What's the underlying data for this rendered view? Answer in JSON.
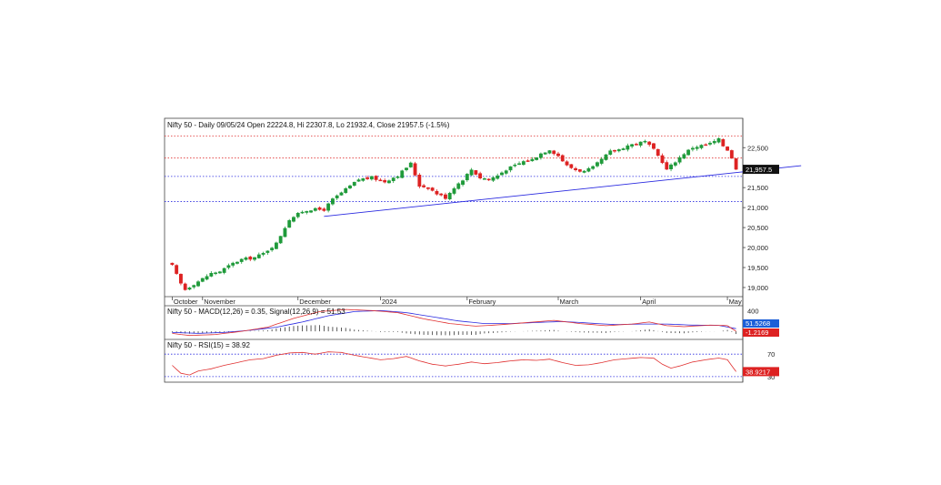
{
  "chart_data": {
    "type": "candlestick",
    "price": {
      "header": "Nifty 50 - Daily 09/05/24 Open 22224.8, Hi 22307.8, Lo 21932.4, Close 21957.5 (-1.5%)",
      "last_close_label": "21,957.5",
      "y_ticks": [
        {
          "value": 22500,
          "label": "22,500"
        },
        {
          "value": 22000,
          "label": "22,000"
        },
        {
          "value": 21500,
          "label": "21,500"
        },
        {
          "value": 21000,
          "label": "21,000"
        },
        {
          "value": 20500,
          "label": "20,500"
        },
        {
          "value": 20000,
          "label": "20,000"
        },
        {
          "value": 19500,
          "label": "19,500"
        },
        {
          "value": 19000,
          "label": "19,000"
        }
      ],
      "ylim": [
        18840,
        22870
      ],
      "x_labels": [
        {
          "bar": 0,
          "label": "October"
        },
        {
          "bar": 7,
          "label": "November"
        },
        {
          "bar": 29,
          "label": "December"
        },
        {
          "bar": 48,
          "label": "2024"
        },
        {
          "bar": 68,
          "label": "February"
        },
        {
          "bar": 89,
          "label": "March"
        },
        {
          "bar": 108,
          "label": "April"
        },
        {
          "bar": 128,
          "label": "May"
        }
      ],
      "hlines": [
        {
          "value": 22790,
          "color": "#e03030"
        },
        {
          "value": 22240,
          "color": "#e03030"
        },
        {
          "value": 21780,
          "color": "#2a2ae0"
        },
        {
          "value": 21150,
          "color": "#2a2ae0"
        }
      ],
      "trendline": {
        "from": [
          35,
          20780
        ],
        "to": [
          145,
          22050
        ],
        "color": "#2a2ae0"
      },
      "up_color": "#1f9a3a",
      "down_color": "#dd2222",
      "keypoints": [
        [
          0,
          19550
        ],
        [
          2,
          19100
        ],
        [
          3,
          18950
        ],
        [
          6,
          19150
        ],
        [
          9,
          19350
        ],
        [
          11,
          19400
        ],
        [
          14,
          19600
        ],
        [
          16,
          19700
        ],
        [
          19,
          19750
        ],
        [
          21,
          19850
        ],
        [
          24,
          20100
        ],
        [
          27,
          20700
        ],
        [
          30,
          20900
        ],
        [
          32,
          20950
        ],
        [
          35,
          20950
        ],
        [
          37,
          21200
        ],
        [
          40,
          21450
        ],
        [
          43,
          21700
        ],
        [
          46,
          21750
        ],
        [
          49,
          21650
        ],
        [
          52,
          21800
        ],
        [
          55,
          22100
        ],
        [
          57,
          21550
        ],
        [
          59,
          21500
        ],
        [
          61,
          21350
        ],
        [
          63,
          21250
        ],
        [
          65,
          21500
        ],
        [
          67,
          21700
        ],
        [
          69,
          21950
        ],
        [
          71,
          21750
        ],
        [
          73,
          21700
        ],
        [
          75,
          21800
        ],
        [
          77,
          21950
        ],
        [
          79,
          22050
        ],
        [
          81,
          22150
        ],
        [
          83,
          22200
        ],
        [
          85,
          22350
        ],
        [
          87,
          22450
        ],
        [
          89,
          22300
        ],
        [
          91,
          22050
        ],
        [
          93,
          21950
        ],
        [
          95,
          21900
        ],
        [
          97,
          22000
        ],
        [
          99,
          22200
        ],
        [
          101,
          22400
        ],
        [
          103,
          22450
        ],
        [
          105,
          22550
        ],
        [
          107,
          22600
        ],
        [
          109,
          22650
        ],
        [
          111,
          22450
        ],
        [
          113,
          22150
        ],
        [
          114,
          21950
        ],
        [
          116,
          22150
        ],
        [
          118,
          22350
        ],
        [
          120,
          22500
        ],
        [
          122,
          22550
        ],
        [
          124,
          22600
        ],
        [
          126,
          22700
        ],
        [
          127,
          22550
        ],
        [
          128,
          22450
        ],
        [
          129,
          22250
        ],
        [
          130,
          21957.5
        ]
      ]
    },
    "macd": {
      "label": "Nifty 50 - MACD(12,26) = 0.35, Signal(12,26,9) = 51.53",
      "tick_label": "400",
      "value_badges": [
        {
          "label": "51.5268",
          "color": "#1c5fd8"
        },
        {
          "label": "-1.2169",
          "color": "#dd2222"
        }
      ],
      "macd_color": "#e03030",
      "signal_color": "#2a2ae0",
      "macd_keypoints": [
        [
          0,
          -40
        ],
        [
          4,
          -80
        ],
        [
          10,
          -60
        ],
        [
          16,
          0
        ],
        [
          22,
          80
        ],
        [
          28,
          250
        ],
        [
          34,
          380
        ],
        [
          40,
          420
        ],
        [
          46,
          400
        ],
        [
          52,
          360
        ],
        [
          58,
          240
        ],
        [
          64,
          150
        ],
        [
          70,
          100
        ],
        [
          76,
          130
        ],
        [
          82,
          170
        ],
        [
          88,
          210
        ],
        [
          94,
          150
        ],
        [
          100,
          110
        ],
        [
          106,
          140
        ],
        [
          110,
          180
        ],
        [
          114,
          110
        ],
        [
          118,
          90
        ],
        [
          124,
          120
        ],
        [
          128,
          110
        ],
        [
          130,
          0.35
        ]
      ],
      "signal_keypoints": [
        [
          0,
          -20
        ],
        [
          6,
          -40
        ],
        [
          12,
          -20
        ],
        [
          18,
          20
        ],
        [
          24,
          80
        ],
        [
          30,
          180
        ],
        [
          36,
          300
        ],
        [
          42,
          380
        ],
        [
          48,
          400
        ],
        [
          54,
          360
        ],
        [
          60,
          280
        ],
        [
          66,
          200
        ],
        [
          72,
          150
        ],
        [
          78,
          150
        ],
        [
          84,
          170
        ],
        [
          90,
          190
        ],
        [
          96,
          160
        ],
        [
          102,
          130
        ],
        [
          108,
          140
        ],
        [
          114,
          140
        ],
        [
          120,
          120
        ],
        [
          126,
          115
        ],
        [
          130,
          51.53
        ]
      ],
      "hist_color": "#333333",
      "ylim": [
        -120,
        440
      ]
    },
    "rsi": {
      "label": "Nifty 50 - RSI(15) = 38.92",
      "y_ticks": [
        {
          "value": 70,
          "label": "70"
        },
        {
          "value": 30,
          "label": "30"
        }
      ],
      "value_badge": {
        "label": "38.9217",
        "color": "#dd2222"
      },
      "line_color": "#e03030",
      "guide_color": "#2a2ae0",
      "ylim": [
        25,
        80
      ],
      "keypoints": [
        [
          0,
          50
        ],
        [
          2,
          36
        ],
        [
          4,
          33
        ],
        [
          6,
          40
        ],
        [
          9,
          44
        ],
        [
          12,
          50
        ],
        [
          15,
          55
        ],
        [
          18,
          60
        ],
        [
          21,
          62
        ],
        [
          24,
          68
        ],
        [
          27,
          72
        ],
        [
          30,
          73
        ],
        [
          33,
          70
        ],
        [
          36,
          74
        ],
        [
          39,
          73
        ],
        [
          42,
          68
        ],
        [
          45,
          64
        ],
        [
          48,
          60
        ],
        [
          51,
          62
        ],
        [
          54,
          66
        ],
        [
          57,
          58
        ],
        [
          60,
          52
        ],
        [
          63,
          49
        ],
        [
          66,
          52
        ],
        [
          69,
          56
        ],
        [
          72,
          53
        ],
        [
          75,
          55
        ],
        [
          78,
          58
        ],
        [
          81,
          60
        ],
        [
          84,
          59
        ],
        [
          87,
          61
        ],
        [
          90,
          55
        ],
        [
          93,
          50
        ],
        [
          96,
          51
        ],
        [
          99,
          55
        ],
        [
          102,
          60
        ],
        [
          105,
          62
        ],
        [
          108,
          64
        ],
        [
          111,
          63
        ],
        [
          113,
          52
        ],
        [
          115,
          45
        ],
        [
          117,
          49
        ],
        [
          120,
          56
        ],
        [
          123,
          60
        ],
        [
          126,
          63
        ],
        [
          128,
          60
        ],
        [
          130,
          38.92
        ]
      ]
    },
    "bar_count": 131
  }
}
